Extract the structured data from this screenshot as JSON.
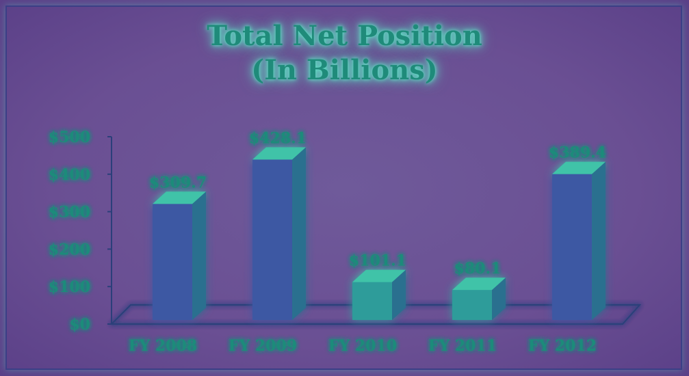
{
  "chart_data": {
    "type": "bar",
    "title_line1": "Total Net Position",
    "title_line2": "(In Billions)",
    "categories": [
      "FY 2008",
      "FY 2009",
      "FY 2010",
      "FY 2011",
      "FY 2012"
    ],
    "values": [
      309.7,
      428.1,
      101.1,
      80.1,
      389.4
    ],
    "value_labels": [
      "$309.7",
      "$428.1",
      "$101.1",
      "$80.1",
      "$389.4"
    ],
    "y_ticks": [
      0,
      100,
      200,
      300,
      400,
      500
    ],
    "y_tick_labels": [
      "$0",
      "$100",
      "$200",
      "$300",
      "$400",
      "$500"
    ],
    "ylim": [
      0,
      500
    ],
    "xlabel": "",
    "ylabel": "",
    "grid": false,
    "legend": "none",
    "three_d": true
  },
  "colors": {
    "background": "#6a4f93",
    "text": "#1f8b7a",
    "glow": "#5fe7c6",
    "bar_front_tall": "#3d58a3",
    "bar_front_short": "#2f9c9a",
    "bar_side": "#2a6f8f",
    "bar_top": "#3fc3a8",
    "axis": "#2b3f7a"
  }
}
